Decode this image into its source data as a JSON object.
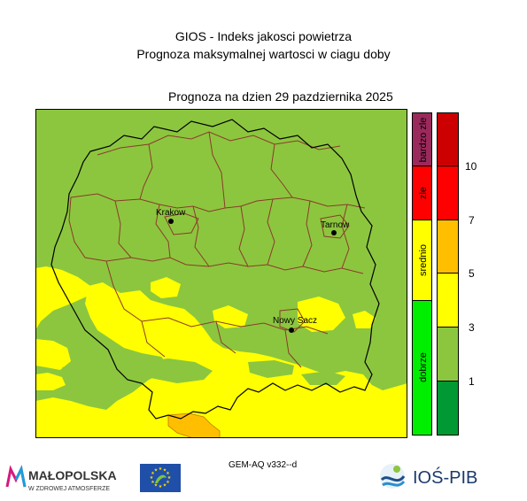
{
  "header": {
    "title_line1": "GIOS - Indeks jakosci powietrza",
    "title_line2": "Prognoza maksymalnej wartosci w ciagu doby",
    "forecast_line": "Prognoza na dzien  29 pazdziernika 2025"
  },
  "cities": [
    {
      "name": "Krakow"
    },
    {
      "name": "Tarnow"
    },
    {
      "name": "Nowy Sacz"
    }
  ],
  "legend": {
    "categories": [
      {
        "label": "dobrze",
        "color": "#00ee00"
      },
      {
        "label": "srednio",
        "color": "#ffff00"
      },
      {
        "label": "zle",
        "color": "#ff0000"
      },
      {
        "label": "bardzo zle",
        "color": "#9b2a5c"
      }
    ],
    "scale_colors": [
      "#009933",
      "#8cc63f",
      "#ffff00",
      "#ffbf00",
      "#ff0000",
      "#cc0000"
    ],
    "tick_labels": [
      "1",
      "3",
      "5",
      "7",
      "10"
    ]
  },
  "map_colors": {
    "good": "#8cc63f",
    "moderate": "#ffff00",
    "sufficient": "#ffbf00",
    "county_border": "#8b3a2a",
    "region_border": "#000000"
  },
  "footer": {
    "model_label": "GEM-AQ v332--d",
    "logo_left_title": "MAŁOPOLSKA",
    "logo_left_sub": "W ZDROWEJ ATMOSFERZE",
    "logo_right": "IOŚ-PIB"
  },
  "icons": [
    "eu-flag-icon",
    "life-logo-icon",
    "malopolska-logo-icon",
    "ios-pib-logo-icon"
  ]
}
